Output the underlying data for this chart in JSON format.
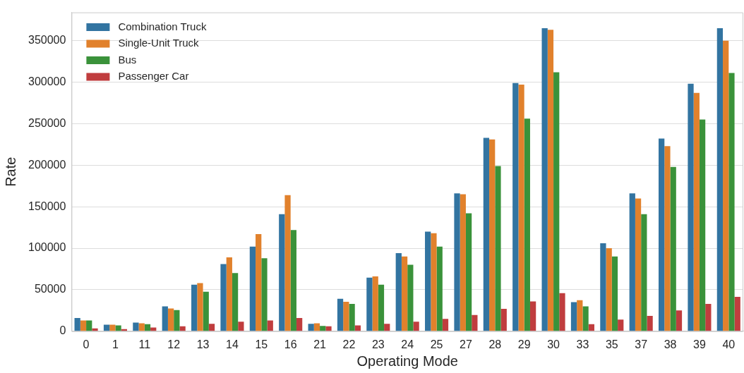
{
  "chart_data": {
    "type": "bar",
    "xlabel": "Operating Mode",
    "ylabel": "Rate",
    "categories": [
      "0",
      "1",
      "11",
      "12",
      "13",
      "14",
      "15",
      "16",
      "21",
      "22",
      "23",
      "24",
      "25",
      "27",
      "28",
      "29",
      "30",
      "33",
      "35",
      "37",
      "38",
      "39",
      "40"
    ],
    "series": [
      {
        "name": "Combination Truck",
        "color": "#3274a1",
        "values": [
          16000,
          8000,
          10500,
          30000,
          56000,
          81000,
          102000,
          141000,
          9000,
          39000,
          64500,
          94000,
          120000,
          166000,
          233000,
          299000,
          365000,
          35000,
          106000,
          166000,
          232000,
          298000,
          365000
        ]
      },
      {
        "name": "Single-Unit Truck",
        "color": "#e1812c",
        "values": [
          13000,
          8000,
          9500,
          27500,
          58000,
          89000,
          117000,
          164000,
          9500,
          35500,
          66000,
          90000,
          118000,
          165000,
          231000,
          297000,
          363000,
          37500,
          100000,
          160000,
          223000,
          287000,
          350000
        ]
      },
      {
        "name": "Bus",
        "color": "#3a923a",
        "values": [
          13000,
          7000,
          8500,
          25500,
          47500,
          70000,
          88000,
          122000,
          6500,
          33000,
          56000,
          80000,
          102000,
          142000,
          199000,
          256000,
          312000,
          30000,
          90000,
          141000,
          198000,
          255000,
          311000
        ]
      },
      {
        "name": "Passenger Car",
        "color": "#c03d3e",
        "values": [
          3500,
          2500,
          4500,
          6000,
          9000,
          11500,
          13000,
          16000,
          6000,
          7000,
          9000,
          11500,
          15000,
          19500,
          27000,
          36000,
          46000,
          8500,
          14000,
          18500,
          25000,
          33000,
          41500
        ]
      }
    ],
    "ylim": [
      0,
      384000
    ],
    "yticks": [
      0,
      50000,
      100000,
      150000,
      200000,
      250000,
      300000,
      350000
    ],
    "grid": "y",
    "legend": "top left"
  }
}
